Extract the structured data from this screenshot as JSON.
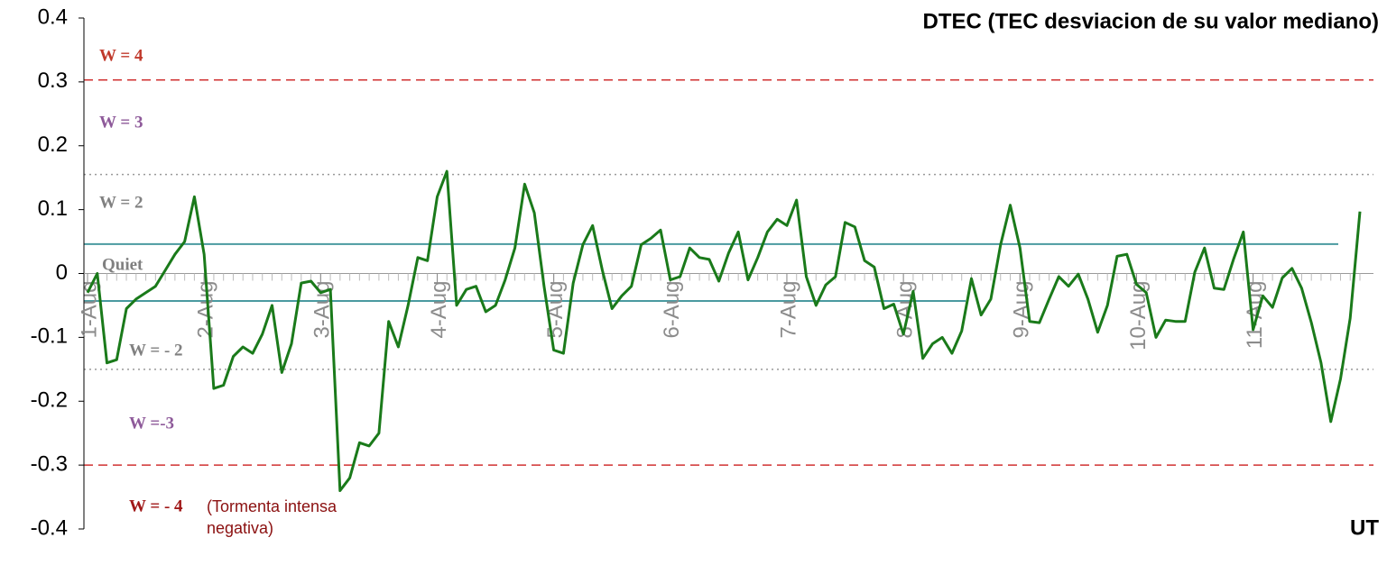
{
  "chart_data": {
    "type": "line",
    "title": "DTEC (TEC desviacion de su valor mediano)",
    "x_label": "UT",
    "xlim": [
      0,
      262
    ],
    "xticks": [
      {
        "value": 0,
        "label": "1-Aug"
      },
      {
        "value": 24,
        "label": "2-Aug"
      },
      {
        "value": 48,
        "label": "3-Aug"
      },
      {
        "value": 72,
        "label": "4-Aug"
      },
      {
        "value": 96,
        "label": "5-Aug"
      },
      {
        "value": 120,
        "label": "6-Aug"
      },
      {
        "value": 144,
        "label": "7-Aug"
      },
      {
        "value": 168,
        "label": "8-Aug"
      },
      {
        "value": 192,
        "label": "9-Aug"
      },
      {
        "value": 216,
        "label": "10-Aug"
      },
      {
        "value": 240,
        "label": "11-Aug"
      }
    ],
    "ylim": [
      -0.4,
      0.4
    ],
    "yticks": [
      0.4,
      0.3,
      0.2,
      0.1,
      0,
      -0.1,
      -0.2,
      -0.3,
      -0.4
    ],
    "x": [
      0,
      2,
      4,
      6,
      8,
      10,
      12,
      14,
      16,
      18,
      20,
      22,
      24,
      26,
      28,
      30,
      32,
      34,
      36,
      38,
      40,
      42,
      44,
      46,
      48,
      50,
      52,
      54,
      56,
      58,
      60,
      62,
      64,
      66,
      68,
      70,
      72,
      74,
      76,
      78,
      80,
      82,
      84,
      86,
      88,
      90,
      92,
      94,
      96,
      98,
      100,
      102,
      104,
      106,
      108,
      110,
      112,
      114,
      116,
      118,
      120,
      122,
      124,
      126,
      128,
      130,
      132,
      134,
      136,
      138,
      140,
      142,
      144,
      146,
      148,
      150,
      152,
      154,
      156,
      158,
      160,
      162,
      164,
      166,
      168,
      170,
      172,
      174,
      176,
      178,
      180,
      182,
      184,
      186,
      188,
      190,
      192,
      194,
      196,
      198,
      200,
      202,
      204,
      206,
      208,
      210,
      212,
      214,
      216,
      218,
      220,
      222,
      224,
      226,
      228,
      230,
      232,
      234,
      236,
      238,
      240,
      242,
      244,
      246,
      248,
      250,
      252,
      254,
      256,
      258,
      260,
      262
    ],
    "series": [
      {
        "name": "DTEC",
        "color": "#1a7a1a",
        "values": [
          -0.03,
          0.0,
          -0.14,
          -0.135,
          -0.055,
          -0.04,
          -0.03,
          -0.02,
          0.005,
          0.03,
          0.05,
          0.12,
          0.03,
          -0.18,
          -0.175,
          -0.13,
          -0.115,
          -0.125,
          -0.095,
          -0.05,
          -0.155,
          -0.11,
          -0.015,
          -0.012,
          -0.03,
          -0.025,
          -0.34,
          -0.32,
          -0.265,
          -0.27,
          -0.25,
          -0.075,
          -0.115,
          -0.05,
          0.025,
          0.02,
          0.12,
          0.16,
          -0.05,
          -0.025,
          -0.02,
          -0.06,
          -0.05,
          -0.01,
          0.04,
          0.14,
          0.095,
          -0.02,
          -0.12,
          -0.125,
          -0.015,
          0.045,
          0.075,
          0.005,
          -0.055,
          -0.035,
          -0.02,
          0.045,
          0.055,
          0.068,
          -0.01,
          -0.005,
          0.04,
          0.025,
          0.022,
          -0.012,
          0.032,
          0.065,
          -0.01,
          0.025,
          0.065,
          0.085,
          0.075,
          0.115,
          -0.005,
          -0.05,
          -0.018,
          -0.005,
          0.08,
          0.073,
          0.02,
          0.01,
          -0.055,
          -0.048,
          -0.095,
          -0.028,
          -0.133,
          -0.11,
          -0.1,
          -0.125,
          -0.09,
          -0.008,
          -0.065,
          -0.04,
          0.045,
          0.107,
          0.04,
          -0.075,
          -0.077,
          -0.04,
          -0.005,
          -0.02,
          -0.001,
          -0.04,
          -0.092,
          -0.05,
          0.027,
          0.03,
          -0.017,
          -0.03,
          -0.1,
          -0.073,
          -0.075,
          -0.075,
          0.002,
          0.04,
          -0.023,
          -0.025,
          0.023,
          0.065,
          -0.088,
          -0.035,
          -0.053,
          -0.007,
          0.008,
          -0.023,
          -0.077,
          -0.14,
          -0.232,
          -0.165,
          -0.07,
          0.097
        ]
      }
    ],
    "reference_lines": [
      {
        "value": 0.303,
        "color": "#d03030",
        "style": "dashed"
      },
      {
        "value": 0.155,
        "color": "#999999",
        "style": "dotted"
      },
      {
        "value": 0.046,
        "color": "#4a9aa0",
        "style": "solid"
      },
      {
        "value": -0.043,
        "color": "#4a9aa0",
        "style": "solid"
      },
      {
        "value": -0.15,
        "color": "#999999",
        "style": "dotted"
      },
      {
        "value": -0.3,
        "color": "#d03030",
        "style": "dashed"
      }
    ],
    "annotations": [
      {
        "text": "W = 4",
        "color": "#c0392b"
      },
      {
        "text": "W = 3",
        "color": "#8e5a9a"
      },
      {
        "text": "W = 2",
        "color": "#808080"
      },
      {
        "text": "Quiet",
        "color": "#808080"
      },
      {
        "text": "W = - 2",
        "color": "#808080"
      },
      {
        "text": "W =-3",
        "color": "#8e5a9a"
      },
      {
        "text": "W = - 4",
        "color": "#a01818"
      },
      {
        "text": "(Tormenta intensa",
        "color": "#8b1010"
      },
      {
        "text": "negativa)",
        "color": "#8b1010"
      }
    ]
  }
}
